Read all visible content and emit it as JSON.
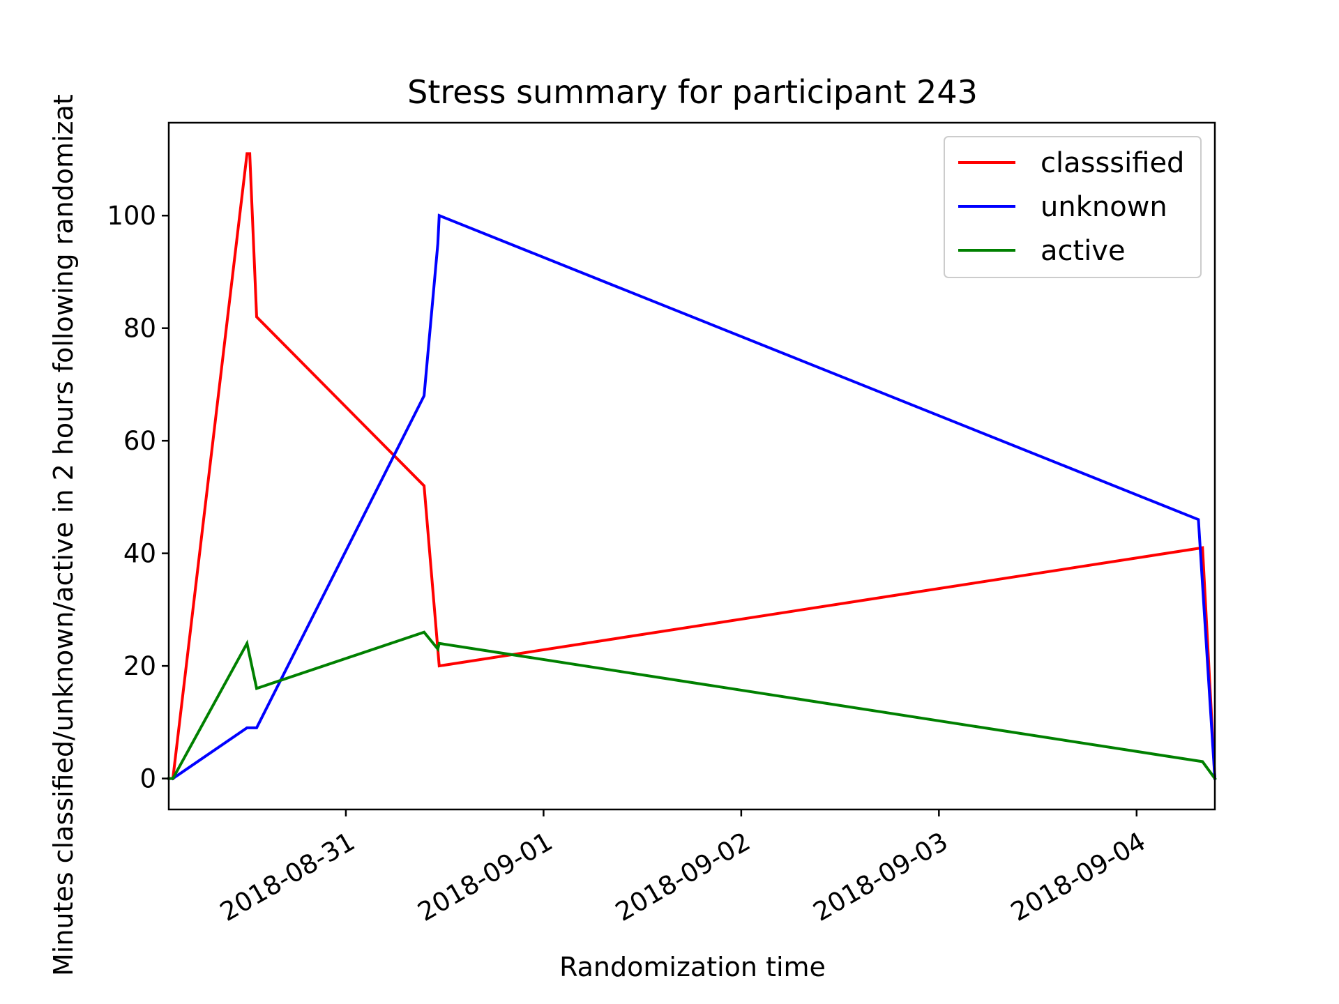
{
  "chart_data": {
    "type": "line",
    "title": "Stress summary for participant 243",
    "xlabel": "Randomization time",
    "ylabel": "Minutes classified/unknown/active in 2 hours following randomizat",
    "x_ticks": [
      "2018-08-31",
      "2018-09-01",
      "2018-09-02",
      "2018-09-03",
      "2018-09-04"
    ],
    "y_ticks": [
      "0",
      "20",
      "40",
      "60",
      "80",
      "100"
    ],
    "ylim": [
      -5.5,
      116.5
    ],
    "xlim": [
      "2018-08-30 02:30",
      "2018-09-04 09:30"
    ],
    "grid": false,
    "legend_position": "top-right",
    "series": [
      {
        "name": "classsified",
        "color": "#ff0000",
        "points": [
          [
            "2018-08-30 03:00",
            0
          ],
          [
            "2018-08-30 12:00",
            111
          ],
          [
            "2018-08-30 12:20",
            111
          ],
          [
            "2018-08-30 13:10",
            82
          ],
          [
            "2018-08-31 09:30",
            52
          ],
          [
            "2018-08-31 11:20",
            20
          ],
          [
            "2018-09-04 08:00",
            41
          ],
          [
            "2018-09-04 09:30",
            0
          ]
        ]
      },
      {
        "name": "unknown",
        "color": "#0000ff",
        "points": [
          [
            "2018-08-30 03:00",
            0
          ],
          [
            "2018-08-30 12:00",
            9
          ],
          [
            "2018-08-30 13:10",
            9
          ],
          [
            "2018-08-31 09:30",
            68
          ],
          [
            "2018-08-31 11:10",
            95
          ],
          [
            "2018-08-31 11:20",
            100
          ],
          [
            "2018-09-04 07:30",
            46
          ],
          [
            "2018-09-04 09:30",
            0
          ]
        ]
      },
      {
        "name": "active",
        "color": "#008000",
        "points": [
          [
            "2018-08-30 02:30",
            0
          ],
          [
            "2018-08-30 03:00",
            0
          ],
          [
            "2018-08-30 12:00",
            24
          ],
          [
            "2018-08-30 13:10",
            16
          ],
          [
            "2018-08-31 09:30",
            26
          ],
          [
            "2018-08-31 11:10",
            23
          ],
          [
            "2018-08-31 11:20",
            24
          ],
          [
            "2018-09-04 08:00",
            3
          ],
          [
            "2018-09-04 09:30",
            0
          ]
        ]
      }
    ]
  }
}
